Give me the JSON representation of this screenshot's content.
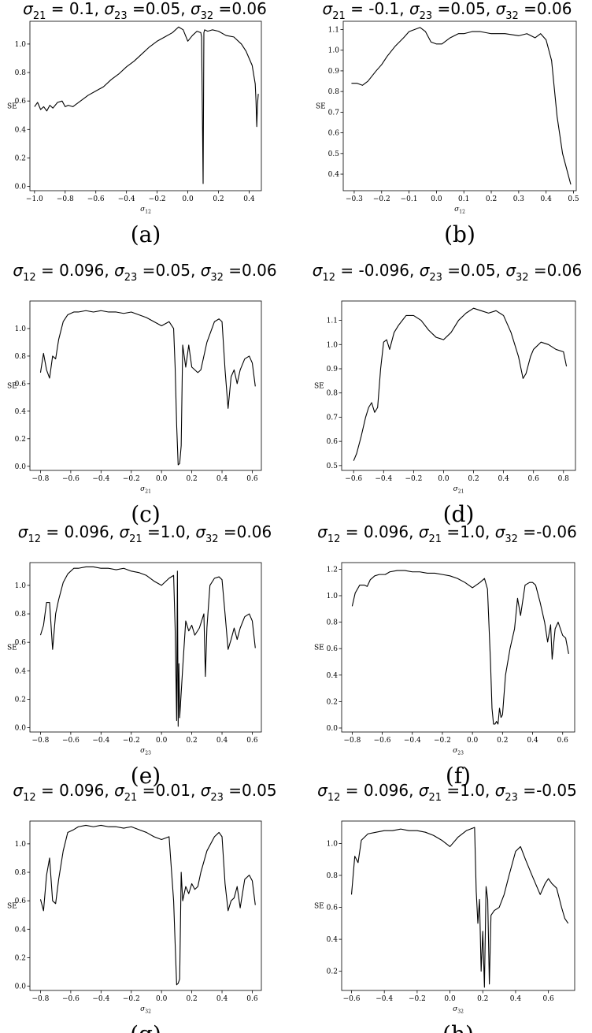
{
  "chart_data": [
    {
      "type": "line",
      "caption": "(a)",
      "xlabel": "σ12",
      "ylabel": "SE",
      "title": {
        "a": "σ21",
        "av": " = 0.1, ",
        "b": "σ23",
        "bv": " =0.05, ",
        "c": "σ32",
        "cv": " =0.06"
      },
      "xlim": [
        -1.03,
        0.48
      ],
      "ylim": [
        -0.03,
        1.16
      ],
      "xticks": [
        -1.0,
        -0.8,
        -0.6,
        -0.4,
        -0.2,
        0.0,
        0.2,
        0.4
      ],
      "xtick_labels": [
        "−1.0",
        "−0.8",
        "−0.6",
        "−0.4",
        "−0.2",
        "0.0",
        "0.2",
        "0.4"
      ],
      "yticks": [
        0.0,
        0.2,
        0.4,
        0.6,
        0.8,
        1.0
      ],
      "ytick_labels": [
        "0.0",
        "0.2",
        "0.4",
        "0.6",
        "0.8",
        "1.0"
      ],
      "x": [
        -1.0,
        -0.98,
        -0.96,
        -0.94,
        -0.92,
        -0.9,
        -0.88,
        -0.85,
        -0.82,
        -0.8,
        -0.78,
        -0.75,
        -0.7,
        -0.65,
        -0.6,
        -0.55,
        -0.5,
        -0.45,
        -0.4,
        -0.35,
        -0.3,
        -0.25,
        -0.2,
        -0.15,
        -0.1,
        -0.06,
        -0.03,
        0.0,
        0.03,
        0.06,
        0.085,
        0.09,
        0.1,
        0.105,
        0.11,
        0.13,
        0.16,
        0.2,
        0.25,
        0.3,
        0.35,
        0.38,
        0.4,
        0.42,
        0.44,
        0.445,
        0.45,
        0.455,
        0.46
      ],
      "y": [
        0.56,
        0.59,
        0.54,
        0.56,
        0.53,
        0.57,
        0.55,
        0.59,
        0.6,
        0.56,
        0.57,
        0.56,
        0.6,
        0.64,
        0.67,
        0.7,
        0.75,
        0.79,
        0.84,
        0.88,
        0.93,
        0.98,
        1.02,
        1.05,
        1.08,
        1.12,
        1.1,
        1.02,
        1.06,
        1.09,
        1.08,
        1.05,
        0.02,
        1.08,
        1.1,
        1.09,
        1.1,
        1.09,
        1.06,
        1.05,
        1.0,
        0.95,
        0.9,
        0.85,
        0.72,
        0.6,
        0.42,
        0.58,
        0.65
      ]
    },
    {
      "type": "line",
      "caption": "(b)",
      "xlabel": "σ12",
      "ylabel": "SE",
      "title": {
        "a": "σ21",
        "av": " = -0.1, ",
        "b": "σ23",
        "bv": " =0.05, ",
        "c": "σ32",
        "cv": " =0.06"
      },
      "xlim": [
        -0.34,
        0.51
      ],
      "ylim": [
        0.32,
        1.14
      ],
      "xticks": [
        -0.3,
        -0.2,
        -0.1,
        0.0,
        0.1,
        0.2,
        0.3,
        0.4,
        0.5
      ],
      "xtick_labels": [
        "−0.3",
        "−0.2",
        "−0.1",
        "0.0",
        "0.1",
        "0.2",
        "0.3",
        "0.4",
        "0.5"
      ],
      "yticks": [
        0.4,
        0.5,
        0.6,
        0.7,
        0.8,
        0.9,
        1.0,
        1.1
      ],
      "ytick_labels": [
        "0.4",
        "0.5",
        "0.6",
        "0.7",
        "0.8",
        "0.9",
        "1.0",
        "1.1"
      ],
      "x": [
        -0.31,
        -0.29,
        -0.27,
        -0.25,
        -0.22,
        -0.2,
        -0.18,
        -0.15,
        -0.12,
        -0.1,
        -0.08,
        -0.06,
        -0.04,
        -0.02,
        0.0,
        0.02,
        0.05,
        0.08,
        0.1,
        0.13,
        0.16,
        0.2,
        0.25,
        0.3,
        0.33,
        0.36,
        0.38,
        0.4,
        0.42,
        0.44,
        0.46,
        0.49
      ],
      "y": [
        0.84,
        0.84,
        0.83,
        0.85,
        0.9,
        0.93,
        0.97,
        1.02,
        1.06,
        1.09,
        1.1,
        1.11,
        1.09,
        1.04,
        1.03,
        1.03,
        1.06,
        1.08,
        1.08,
        1.09,
        1.09,
        1.08,
        1.08,
        1.07,
        1.08,
        1.06,
        1.08,
        1.05,
        0.95,
        0.68,
        0.5,
        0.35
      ]
    },
    {
      "type": "line",
      "caption": "(c)",
      "xlabel": "σ21",
      "ylabel": "SE",
      "title": {
        "a": "σ12",
        "av": " = 0.096, ",
        "b": "σ23",
        "bv": " =0.05, ",
        "c": "σ32",
        "cv": " =0.06"
      },
      "xlim": [
        -0.87,
        0.66
      ],
      "ylim": [
        -0.03,
        1.2
      ],
      "xticks": [
        -0.8,
        -0.6,
        -0.4,
        -0.2,
        0.0,
        0.2,
        0.4,
        0.6
      ],
      "xtick_labels": [
        "−0.8",
        "−0.6",
        "−0.4",
        "−0.2",
        "0.0",
        "0.2",
        "0.4",
        "0.6"
      ],
      "yticks": [
        0.0,
        0.2,
        0.4,
        0.6,
        0.8,
        1.0
      ],
      "ytick_labels": [
        "0.0",
        "0.2",
        "0.4",
        "0.6",
        "0.8",
        "1.0"
      ],
      "x": [
        -0.8,
        -0.78,
        -0.76,
        -0.74,
        -0.72,
        -0.7,
        -0.68,
        -0.65,
        -0.62,
        -0.58,
        -0.55,
        -0.5,
        -0.45,
        -0.4,
        -0.35,
        -0.3,
        -0.25,
        -0.2,
        -0.15,
        -0.1,
        -0.05,
        0.0,
        0.05,
        0.08,
        0.09,
        0.1,
        0.11,
        0.12,
        0.13,
        0.14,
        0.16,
        0.18,
        0.2,
        0.22,
        0.24,
        0.26,
        0.3,
        0.35,
        0.38,
        0.4,
        0.42,
        0.44,
        0.46,
        0.48,
        0.5,
        0.52,
        0.55,
        0.58,
        0.6,
        0.62
      ],
      "y": [
        0.68,
        0.82,
        0.7,
        0.64,
        0.8,
        0.78,
        0.92,
        1.05,
        1.1,
        1.12,
        1.12,
        1.13,
        1.12,
        1.13,
        1.12,
        1.12,
        1.11,
        1.12,
        1.1,
        1.08,
        1.05,
        1.02,
        1.05,
        1.0,
        0.72,
        0.3,
        0.01,
        0.02,
        0.15,
        0.88,
        0.72,
        0.88,
        0.72,
        0.7,
        0.68,
        0.7,
        0.9,
        1.05,
        1.07,
        1.05,
        0.7,
        0.42,
        0.65,
        0.7,
        0.6,
        0.7,
        0.78,
        0.8,
        0.75,
        0.58
      ]
    },
    {
      "type": "line",
      "caption": "(d)",
      "xlabel": "σ21",
      "ylabel": "SE",
      "title": {
        "a": "σ12",
        "av": " = -0.096, ",
        "b": "σ23",
        "bv": " =0.05, ",
        "c": "σ32",
        "cv": " =0.06"
      },
      "xlim": [
        -0.68,
        0.88
      ],
      "ylim": [
        0.48,
        1.18
      ],
      "xticks": [
        -0.6,
        -0.4,
        -0.2,
        0.0,
        0.2,
        0.4,
        0.6,
        0.8
      ],
      "xtick_labels": [
        "−0.6",
        "−0.4",
        "−0.2",
        "0.0",
        "0.2",
        "0.4",
        "0.6",
        "0.8"
      ],
      "yticks": [
        0.5,
        0.6,
        0.7,
        0.8,
        0.9,
        1.0,
        1.1
      ],
      "ytick_labels": [
        "0.5",
        "0.6",
        "0.7",
        "0.8",
        "0.9",
        "1.0",
        "1.1"
      ],
      "x": [
        -0.6,
        -0.58,
        -0.55,
        -0.52,
        -0.5,
        -0.48,
        -0.46,
        -0.44,
        -0.42,
        -0.4,
        -0.38,
        -0.36,
        -0.33,
        -0.3,
        -0.25,
        -0.2,
        -0.15,
        -0.1,
        -0.05,
        0.0,
        0.05,
        0.1,
        0.15,
        0.2,
        0.25,
        0.3,
        0.35,
        0.4,
        0.45,
        0.5,
        0.53,
        0.55,
        0.58,
        0.6,
        0.65,
        0.7,
        0.75,
        0.8,
        0.82
      ],
      "y": [
        0.52,
        0.55,
        0.62,
        0.7,
        0.74,
        0.76,
        0.72,
        0.74,
        0.9,
        1.01,
        1.02,
        0.98,
        1.05,
        1.08,
        1.12,
        1.12,
        1.1,
        1.06,
        1.03,
        1.02,
        1.05,
        1.1,
        1.13,
        1.15,
        1.14,
        1.13,
        1.14,
        1.12,
        1.05,
        0.95,
        0.86,
        0.88,
        0.95,
        0.98,
        1.01,
        1.0,
        0.98,
        0.97,
        0.91
      ]
    },
    {
      "type": "line",
      "caption": "(e)",
      "xlabel": "σ23",
      "ylabel": "SE",
      "title": {
        "a": "σ12",
        "av": " = 0.096, ",
        "b": "σ21",
        "bv": " =1.0, ",
        "c": "σ32",
        "cv": " =0.06"
      },
      "xlim": [
        -0.87,
        0.66
      ],
      "ylim": [
        -0.03,
        1.16
      ],
      "xticks": [
        -0.8,
        -0.6,
        -0.4,
        -0.2,
        0.0,
        0.2,
        0.4,
        0.6
      ],
      "xtick_labels": [
        "−0.8",
        "−0.6",
        "−0.4",
        "−0.2",
        "0.0",
        "0.2",
        "0.4",
        "0.6"
      ],
      "yticks": [
        0.0,
        0.2,
        0.4,
        0.6,
        0.8,
        1.0
      ],
      "ytick_labels": [
        "0.0",
        "0.2",
        "0.4",
        "0.6",
        "0.8",
        "1.0"
      ],
      "x": [
        -0.8,
        -0.78,
        -0.76,
        -0.74,
        -0.72,
        -0.7,
        -0.68,
        -0.65,
        -0.62,
        -0.58,
        -0.55,
        -0.5,
        -0.45,
        -0.4,
        -0.35,
        -0.3,
        -0.25,
        -0.2,
        -0.15,
        -0.1,
        -0.05,
        0.0,
        0.05,
        0.08,
        0.09,
        0.1,
        0.105,
        0.11,
        0.115,
        0.12,
        0.14,
        0.16,
        0.18,
        0.2,
        0.22,
        0.25,
        0.28,
        0.29,
        0.3,
        0.32,
        0.35,
        0.38,
        0.4,
        0.42,
        0.44,
        0.46,
        0.48,
        0.5,
        0.52,
        0.55,
        0.58,
        0.6,
        0.62
      ],
      "y": [
        0.65,
        0.72,
        0.88,
        0.88,
        0.55,
        0.8,
        0.9,
        1.02,
        1.08,
        1.12,
        1.12,
        1.13,
        1.13,
        1.12,
        1.12,
        1.11,
        1.12,
        1.1,
        1.09,
        1.07,
        1.03,
        1.0,
        1.05,
        1.07,
        0.7,
        0.05,
        1.1,
        0.01,
        0.45,
        0.07,
        0.42,
        0.75,
        0.68,
        0.72,
        0.65,
        0.7,
        0.8,
        0.36,
        0.7,
        1.0,
        1.05,
        1.06,
        1.04,
        0.8,
        0.55,
        0.62,
        0.7,
        0.62,
        0.7,
        0.78,
        0.8,
        0.75,
        0.56
      ]
    },
    {
      "type": "line",
      "caption": "(f)",
      "xlabel": "σ23",
      "ylabel": "SE",
      "title": {
        "a": "σ12",
        "av": " = 0.096, ",
        "b": "σ21",
        "bv": " =1.0, ",
        "c": "σ32",
        "cv": " =-0.06"
      },
      "xlim": [
        -0.87,
        0.68
      ],
      "ylim": [
        -0.03,
        1.25
      ],
      "xticks": [
        -0.8,
        -0.6,
        -0.4,
        -0.2,
        0.0,
        0.2,
        0.4,
        0.6
      ],
      "xtick_labels": [
        "−0.8",
        "−0.6",
        "−0.4",
        "−0.2",
        "0.0",
        "0.2",
        "0.4",
        "0.6"
      ],
      "yticks": [
        0.0,
        0.2,
        0.4,
        0.6,
        0.8,
        1.0,
        1.2
      ],
      "ytick_labels": [
        "0.0",
        "0.2",
        "0.4",
        "0.6",
        "0.8",
        "1.0",
        "1.2"
      ],
      "x": [
        -0.8,
        -0.78,
        -0.75,
        -0.72,
        -0.7,
        -0.68,
        -0.65,
        -0.62,
        -0.58,
        -0.55,
        -0.5,
        -0.45,
        -0.4,
        -0.35,
        -0.3,
        -0.25,
        -0.2,
        -0.15,
        -0.1,
        -0.05,
        0.0,
        0.05,
        0.08,
        0.1,
        0.12,
        0.13,
        0.14,
        0.15,
        0.16,
        0.17,
        0.18,
        0.19,
        0.2,
        0.22,
        0.25,
        0.28,
        0.3,
        0.32,
        0.35,
        0.38,
        0.4,
        0.42,
        0.45,
        0.48,
        0.5,
        0.52,
        0.53,
        0.55,
        0.57,
        0.6,
        0.62,
        0.64
      ],
      "y": [
        0.92,
        1.02,
        1.08,
        1.08,
        1.07,
        1.12,
        1.15,
        1.16,
        1.16,
        1.18,
        1.19,
        1.19,
        1.18,
        1.18,
        1.17,
        1.17,
        1.16,
        1.15,
        1.13,
        1.1,
        1.06,
        1.1,
        1.13,
        1.05,
        0.5,
        0.15,
        0.03,
        0.03,
        0.05,
        0.03,
        0.15,
        0.08,
        0.1,
        0.4,
        0.6,
        0.75,
        0.98,
        0.85,
        1.08,
        1.1,
        1.1,
        1.08,
        0.95,
        0.8,
        0.65,
        0.78,
        0.52,
        0.75,
        0.8,
        0.7,
        0.68,
        0.56
      ]
    },
    {
      "type": "line",
      "caption": "(g)",
      "xlabel": "σ32",
      "ylabel": "SE",
      "title": {
        "a": "σ12",
        "av": " = 0.096, ",
        "b": "σ21",
        "bv": " =0.01, ",
        "c": "σ23",
        "cv": " =0.05"
      },
      "xlim": [
        -0.87,
        0.66
      ],
      "ylim": [
        -0.03,
        1.16
      ],
      "xticks": [
        -0.8,
        -0.6,
        -0.4,
        -0.2,
        0.0,
        0.2,
        0.4,
        0.6
      ],
      "xtick_labels": [
        "−0.8",
        "−0.6",
        "−0.4",
        "−0.2",
        "0.0",
        "0.2",
        "0.4",
        "0.6"
      ],
      "yticks": [
        0.0,
        0.2,
        0.4,
        0.6,
        0.8,
        1.0
      ],
      "ytick_labels": [
        "0.0",
        "0.2",
        "0.4",
        "0.6",
        "0.8",
        "1.0"
      ],
      "x": [
        -0.8,
        -0.78,
        -0.76,
        -0.74,
        -0.72,
        -0.7,
        -0.68,
        -0.65,
        -0.62,
        -0.58,
        -0.55,
        -0.5,
        -0.45,
        -0.4,
        -0.35,
        -0.3,
        -0.25,
        -0.2,
        -0.15,
        -0.1,
        -0.05,
        0.0,
        0.05,
        0.08,
        0.09,
        0.1,
        0.11,
        0.12,
        0.13,
        0.14,
        0.16,
        0.18,
        0.2,
        0.22,
        0.24,
        0.26,
        0.3,
        0.35,
        0.38,
        0.4,
        0.42,
        0.44,
        0.46,
        0.48,
        0.5,
        0.52,
        0.55,
        0.58,
        0.6,
        0.62
      ],
      "y": [
        0.61,
        0.53,
        0.78,
        0.9,
        0.6,
        0.58,
        0.75,
        0.95,
        1.08,
        1.1,
        1.12,
        1.13,
        1.12,
        1.13,
        1.12,
        1.12,
        1.11,
        1.12,
        1.1,
        1.08,
        1.05,
        1.03,
        1.05,
        0.6,
        0.3,
        0.01,
        0.02,
        0.05,
        0.8,
        0.6,
        0.7,
        0.65,
        0.72,
        0.68,
        0.7,
        0.8,
        0.95,
        1.05,
        1.08,
        1.05,
        0.72,
        0.53,
        0.6,
        0.62,
        0.7,
        0.55,
        0.75,
        0.78,
        0.74,
        0.57
      ]
    },
    {
      "type": "line",
      "caption": "(h)",
      "xlabel": "σ32",
      "ylabel": "SE",
      "title": {
        "a": "σ12",
        "av": " = 0.096, ",
        "b": "σ21",
        "bv": " =1.0, ",
        "c": "σ23",
        "cv": " =-0.05"
      },
      "xlim": [
        -0.66,
        0.76
      ],
      "ylim": [
        0.08,
        1.14
      ],
      "xticks": [
        -0.6,
        -0.4,
        -0.2,
        0.0,
        0.2,
        0.4,
        0.6
      ],
      "xtick_labels": [
        "−0.6",
        "−0.4",
        "−0.2",
        "0.0",
        "0.2",
        "0.4",
        "0.6"
      ],
      "yticks": [
        0.2,
        0.4,
        0.6,
        0.8,
        1.0
      ],
      "ytick_labels": [
        "0.2",
        "0.4",
        "0.6",
        "0.8",
        "1.0"
      ],
      "x": [
        -0.6,
        -0.58,
        -0.56,
        -0.54,
        -0.5,
        -0.45,
        -0.4,
        -0.35,
        -0.3,
        -0.25,
        -0.2,
        -0.15,
        -0.1,
        -0.05,
        0.0,
        0.05,
        0.1,
        0.15,
        0.16,
        0.17,
        0.18,
        0.19,
        0.2,
        0.21,
        0.22,
        0.23,
        0.24,
        0.25,
        0.27,
        0.3,
        0.33,
        0.36,
        0.4,
        0.43,
        0.46,
        0.5,
        0.55,
        0.58,
        0.6,
        0.62,
        0.65,
        0.68,
        0.7,
        0.72
      ],
      "y": [
        0.68,
        0.92,
        0.88,
        1.02,
        1.06,
        1.07,
        1.08,
        1.08,
        1.09,
        1.08,
        1.08,
        1.07,
        1.05,
        1.02,
        0.98,
        1.04,
        1.08,
        1.1,
        0.7,
        0.5,
        0.65,
        0.2,
        0.45,
        0.1,
        0.73,
        0.65,
        0.12,
        0.55,
        0.58,
        0.6,
        0.68,
        0.8,
        0.95,
        0.98,
        0.9,
        0.8,
        0.68,
        0.75,
        0.78,
        0.75,
        0.72,
        0.6,
        0.53,
        0.5
      ]
    }
  ]
}
